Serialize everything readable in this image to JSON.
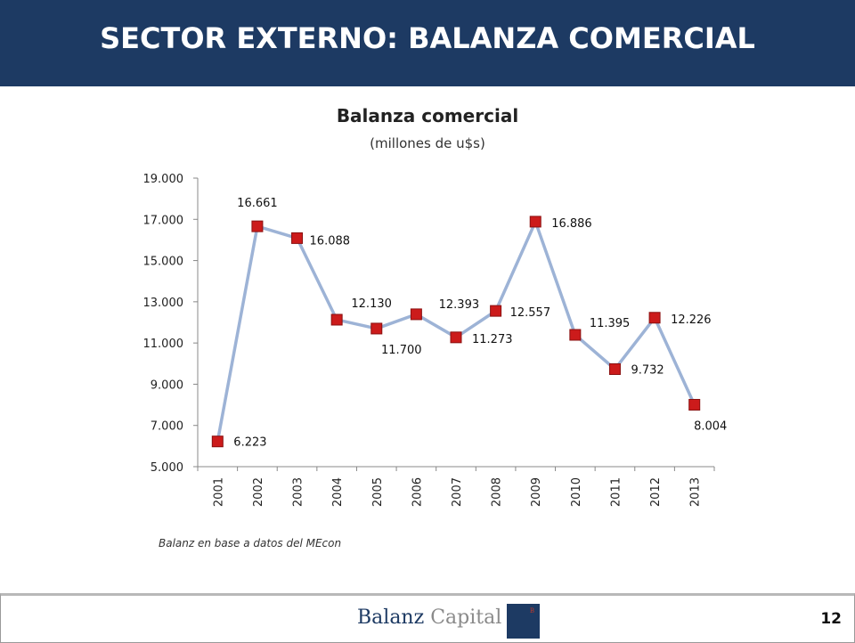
{
  "header": {
    "title": "SECTOR EXTERNO: BALANZA COMERCIAL"
  },
  "chart_data": {
    "type": "line",
    "title": "Balanza comercial",
    "subtitle": "(millones de u$s)",
    "categories": [
      "2001",
      "2002",
      "2003",
      "2004",
      "2005",
      "2006",
      "2007",
      "2008",
      "2009",
      "2010",
      "2011",
      "2012",
      "2013"
    ],
    "series": [
      {
        "values": [
          6223,
          16661,
          16088,
          12130,
          11700,
          12393,
          11273,
          12557,
          16886,
          11395,
          9732,
          12226,
          8004
        ],
        "labels": [
          "6.223",
          "16.661",
          "16.088",
          "12.130",
          "11.700",
          "12.393",
          "11.273",
          "12.557",
          "16.886",
          "11.395",
          "9.732",
          "12.226",
          "8.004"
        ],
        "line_color": "#9db3d6",
        "marker_color": "#cc1b1b"
      }
    ],
    "ylim": [
      5000,
      19000
    ],
    "yticks": [
      5000,
      7000,
      9000,
      11000,
      13000,
      15000,
      17000,
      19000
    ],
    "ytick_labels": [
      "5.000",
      "7.000",
      "9.000",
      "11.000",
      "13.000",
      "15.000",
      "17.000",
      "19.000"
    ],
    "xlabel": "",
    "ylabel": "",
    "grid": false,
    "legend": "none"
  },
  "source": "Balanz en base a datos del MEcon",
  "footer": {
    "logo_part1": "Balanz",
    "logo_part2": "Capital",
    "logo_mark": "B",
    "page_number": "12"
  }
}
